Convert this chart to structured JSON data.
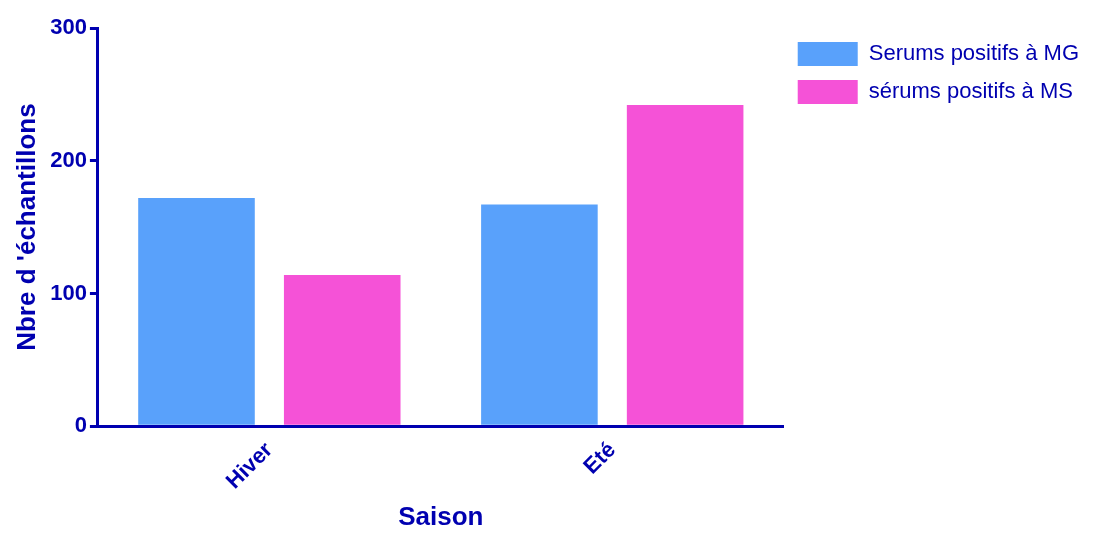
{
  "chart_data": {
    "type": "bar",
    "xlabel": "Saison",
    "ylabel": "Nbre d 'échantillons",
    "categories": [
      "Hiver",
      "Eté"
    ],
    "series": [
      {
        "name": "Serums positifs à MG",
        "color": "#59a1fb",
        "values": [
          172,
          167
        ]
      },
      {
        "name": "sérums positifs à MS",
        "color": "#f552d7",
        "values": [
          114,
          242
        ]
      }
    ],
    "ylim": [
      0,
      300
    ],
    "yticks": [
      0,
      100,
      200,
      300
    ],
    "grid": false,
    "legend": "top right"
  }
}
